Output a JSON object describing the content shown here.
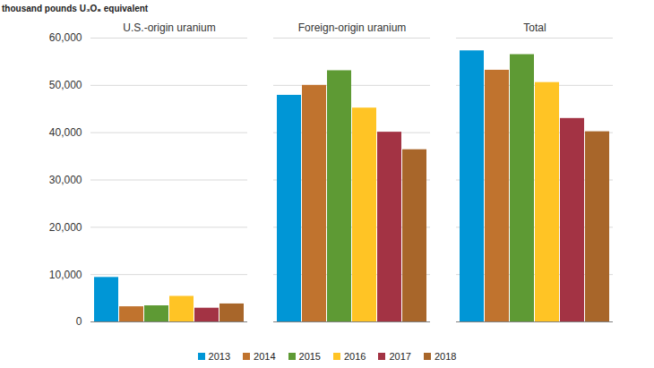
{
  "chart_data": {
    "type": "bar",
    "y_label": "thousand pounds U₃O₈ equivalent",
    "categories": [
      "U.S.-origin uranium",
      "Foreign-origin uranium",
      "Total"
    ],
    "series": [
      {
        "name": "2013",
        "color": "#0096d6",
        "values": [
          9400,
          47900,
          57300
        ]
      },
      {
        "name": "2014",
        "color": "#c0732e",
        "values": [
          3200,
          50000,
          53200
        ]
      },
      {
        "name": "2015",
        "color": "#5e9a34",
        "values": [
          3400,
          53100,
          56500
        ]
      },
      {
        "name": "2016",
        "color": "#ffc425",
        "values": [
          5400,
          45200,
          50600
        ]
      },
      {
        "name": "2017",
        "color": "#a33344",
        "values": [
          2900,
          40100,
          43000
        ]
      },
      {
        "name": "2018",
        "color": "#a8662a",
        "values": [
          3800,
          36400,
          40200
        ]
      }
    ],
    "ylim": [
      0,
      60000
    ],
    "yticks": [
      0,
      {
        "value": 10000,
        "label": "10,000"
      },
      {
        "value": 20000,
        "label": "20,000"
      },
      {
        "value": 30000,
        "label": "30,000"
      },
      {
        "value": 40000,
        "label": "40,000"
      },
      {
        "value": 50000,
        "label": "50,000"
      },
      {
        "value": 60000,
        "label": "60,000"
      }
    ],
    "grid": true,
    "legend": "bottom"
  }
}
